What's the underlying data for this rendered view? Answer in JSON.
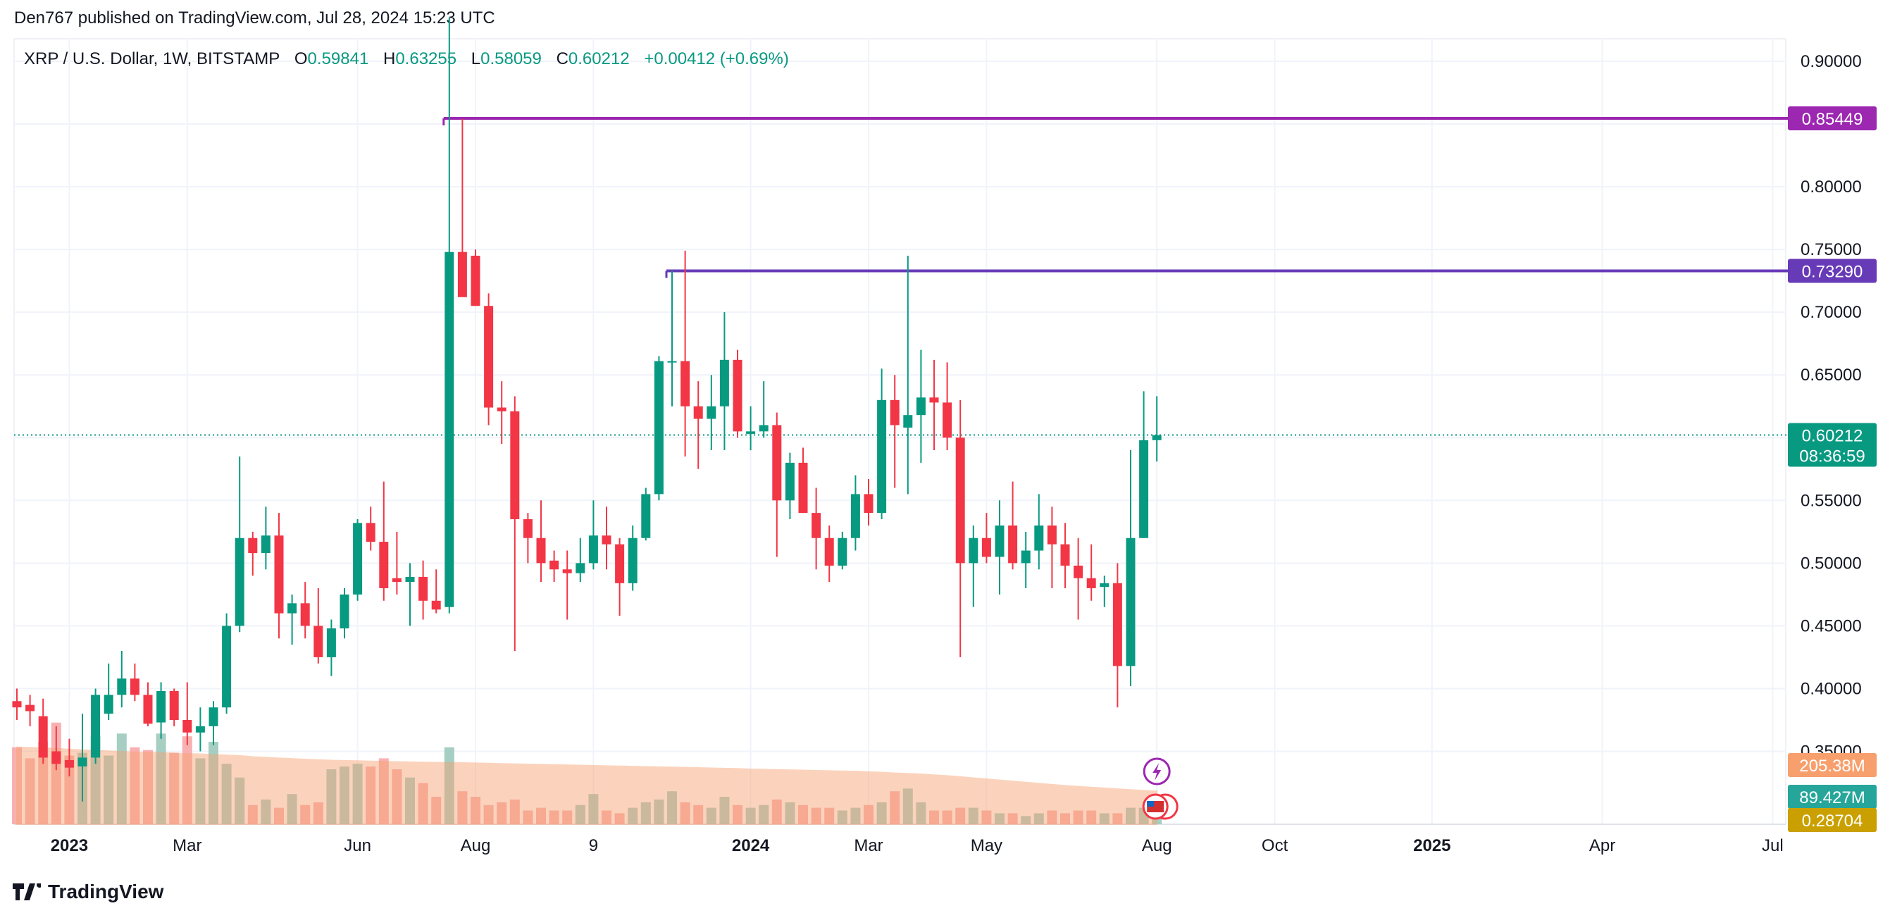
{
  "header": {
    "publisher_line": "Den767 published on TradingView.com, Jul 28, 2024 15:23 UTC"
  },
  "brand": {
    "name": "TradingView"
  },
  "legend": {
    "symbol": "XRP / U.S. Dollar, 1W, BITSTAMP",
    "open_label": "O",
    "open": "0.59841",
    "high_label": "H",
    "high": "0.63255",
    "low_label": "L",
    "low": "0.58059",
    "close_label": "C",
    "close": "0.60212",
    "change": "+0.00412 (+0.69%)"
  },
  "colors": {
    "up": "#089981",
    "down": "#f23645",
    "line_upper": "#9c27b0",
    "line_lower": "#673ab7",
    "volume_ma": "#f7a06e",
    "grid": "#f0f3fa",
    "axis_text": "#131722"
  },
  "chart_data": {
    "type": "candlestick",
    "symbol": "XRP / U.S. Dollar",
    "interval": "1W",
    "exchange": "BITSTAMP",
    "y_axis": {
      "min": 0.35,
      "max": 0.9,
      "ticks": [
        "0.90000",
        "0.85000",
        "0.80000",
        "0.75000",
        "0.70000",
        "0.65000",
        "0.60000",
        "0.55000",
        "0.50000",
        "0.45000",
        "0.40000",
        "0.35000"
      ]
    },
    "x_axis": {
      "tick_labels": [
        {
          "label": "2023",
          "bold": true,
          "index": 4
        },
        {
          "label": "Mar",
          "bold": false,
          "index": 13
        },
        {
          "label": "Jun",
          "bold": false,
          "index": 26
        },
        {
          "label": "Aug",
          "bold": false,
          "index": 35
        },
        {
          "label": "9",
          "bold": false,
          "index": 44
        },
        {
          "label": "2024",
          "bold": true,
          "index": 56
        },
        {
          "label": "Mar",
          "bold": false,
          "index": 65
        },
        {
          "label": "May",
          "bold": false,
          "index": 74
        },
        {
          "label": "Aug",
          "bold": false,
          "index": 87
        },
        {
          "label": "Oct",
          "bold": false,
          "index": 96
        },
        {
          "label": "2025",
          "bold": true,
          "index": 108
        },
        {
          "label": "Apr",
          "bold": false,
          "index": 121
        },
        {
          "label": "Jul",
          "bold": false,
          "index": 134
        }
      ],
      "total_slots": 137
    },
    "horizontal_lines": [
      {
        "value": 0.85449,
        "label": "0.85449",
        "color": "#9c27b0",
        "start_index": 33
      },
      {
        "value": 0.7329,
        "label": "0.73290",
        "color": "#673ab7",
        "start_index": 50
      }
    ],
    "last_price": {
      "value": 0.60212,
      "label": "0.60212",
      "countdown": "08:36:59"
    },
    "volume_labels": [
      {
        "label": "205.38M",
        "color": "#f7a06e"
      },
      {
        "label": "89.427M",
        "color": "#26a69a"
      },
      {
        "label": "0.28704",
        "color": "#c9a000"
      }
    ],
    "candles": [
      {
        "o": 0.39,
        "h": 0.4,
        "l": 0.375,
        "c": 0.385
      },
      {
        "o": 0.387,
        "h": 0.395,
        "l": 0.37,
        "c": 0.382
      },
      {
        "o": 0.378,
        "h": 0.392,
        "l": 0.34,
        "c": 0.345
      },
      {
        "o": 0.35,
        "h": 0.37,
        "l": 0.335,
        "c": 0.34
      },
      {
        "o": 0.343,
        "h": 0.36,
        "l": 0.33,
        "c": 0.337
      },
      {
        "o": 0.338,
        "h": 0.38,
        "l": 0.31,
        "c": 0.345
      },
      {
        "o": 0.345,
        "h": 0.4,
        "l": 0.34,
        "c": 0.395
      },
      {
        "o": 0.38,
        "h": 0.42,
        "l": 0.375,
        "c": 0.395
      },
      {
        "o": 0.395,
        "h": 0.43,
        "l": 0.385,
        "c": 0.408
      },
      {
        "o": 0.408,
        "h": 0.42,
        "l": 0.39,
        "c": 0.395
      },
      {
        "o": 0.395,
        "h": 0.405,
        "l": 0.37,
        "c": 0.372
      },
      {
        "o": 0.373,
        "h": 0.405,
        "l": 0.36,
        "c": 0.398
      },
      {
        "o": 0.398,
        "h": 0.4,
        "l": 0.37,
        "c": 0.375
      },
      {
        "o": 0.375,
        "h": 0.405,
        "l": 0.355,
        "c": 0.365
      },
      {
        "o": 0.365,
        "h": 0.385,
        "l": 0.35,
        "c": 0.37
      },
      {
        "o": 0.37,
        "h": 0.39,
        "l": 0.355,
        "c": 0.385
      },
      {
        "o": 0.385,
        "h": 0.46,
        "l": 0.38,
        "c": 0.45
      },
      {
        "o": 0.45,
        "h": 0.585,
        "l": 0.445,
        "c": 0.52
      },
      {
        "o": 0.52,
        "h": 0.525,
        "l": 0.49,
        "c": 0.508
      },
      {
        "o": 0.508,
        "h": 0.545,
        "l": 0.495,
        "c": 0.522
      },
      {
        "o": 0.522,
        "h": 0.54,
        "l": 0.44,
        "c": 0.46
      },
      {
        "o": 0.46,
        "h": 0.475,
        "l": 0.435,
        "c": 0.468
      },
      {
        "o": 0.468,
        "h": 0.485,
        "l": 0.44,
        "c": 0.45
      },
      {
        "o": 0.45,
        "h": 0.48,
        "l": 0.42,
        "c": 0.425
      },
      {
        "o": 0.425,
        "h": 0.455,
        "l": 0.41,
        "c": 0.448
      },
      {
        "o": 0.448,
        "h": 0.48,
        "l": 0.44,
        "c": 0.475
      },
      {
        "o": 0.475,
        "h": 0.535,
        "l": 0.47,
        "c": 0.532
      },
      {
        "o": 0.532,
        "h": 0.545,
        "l": 0.51,
        "c": 0.517
      },
      {
        "o": 0.517,
        "h": 0.565,
        "l": 0.47,
        "c": 0.48
      },
      {
        "o": 0.488,
        "h": 0.525,
        "l": 0.475,
        "c": 0.485
      },
      {
        "o": 0.485,
        "h": 0.5,
        "l": 0.45,
        "c": 0.489
      },
      {
        "o": 0.489,
        "h": 0.502,
        "l": 0.455,
        "c": 0.47
      },
      {
        "o": 0.47,
        "h": 0.495,
        "l": 0.46,
        "c": 0.463
      },
      {
        "o": 0.465,
        "h": 0.935,
        "l": 0.46,
        "c": 0.748
      },
      {
        "o": 0.748,
        "h": 0.854,
        "l": 0.715,
        "c": 0.712
      },
      {
        "o": 0.745,
        "h": 0.75,
        "l": 0.705,
        "c": 0.705
      },
      {
        "o": 0.705,
        "h": 0.715,
        "l": 0.61,
        "c": 0.624
      },
      {
        "o": 0.624,
        "h": 0.645,
        "l": 0.595,
        "c": 0.621
      },
      {
        "o": 0.621,
        "h": 0.633,
        "l": 0.43,
        "c": 0.535
      },
      {
        "o": 0.535,
        "h": 0.54,
        "l": 0.5,
        "c": 0.52
      },
      {
        "o": 0.52,
        "h": 0.55,
        "l": 0.485,
        "c": 0.5
      },
      {
        "o": 0.502,
        "h": 0.51,
        "l": 0.485,
        "c": 0.495
      },
      {
        "o": 0.495,
        "h": 0.51,
        "l": 0.455,
        "c": 0.492
      },
      {
        "o": 0.492,
        "h": 0.52,
        "l": 0.485,
        "c": 0.5
      },
      {
        "o": 0.5,
        "h": 0.55,
        "l": 0.495,
        "c": 0.522
      },
      {
        "o": 0.522,
        "h": 0.545,
        "l": 0.495,
        "c": 0.515
      },
      {
        "o": 0.515,
        "h": 0.52,
        "l": 0.458,
        "c": 0.484
      },
      {
        "o": 0.484,
        "h": 0.53,
        "l": 0.478,
        "c": 0.52
      },
      {
        "o": 0.52,
        "h": 0.56,
        "l": 0.518,
        "c": 0.555
      },
      {
        "o": 0.555,
        "h": 0.665,
        "l": 0.55,
        "c": 0.661
      },
      {
        "o": 0.661,
        "h": 0.733,
        "l": 0.625,
        "c": 0.661
      },
      {
        "o": 0.661,
        "h": 0.749,
        "l": 0.585,
        "c": 0.625
      },
      {
        "o": 0.625,
        "h": 0.645,
        "l": 0.575,
        "c": 0.615
      },
      {
        "o": 0.615,
        "h": 0.65,
        "l": 0.59,
        "c": 0.625
      },
      {
        "o": 0.625,
        "h": 0.7,
        "l": 0.59,
        "c": 0.662
      },
      {
        "o": 0.662,
        "h": 0.67,
        "l": 0.6,
        "c": 0.605
      },
      {
        "o": 0.603,
        "h": 0.625,
        "l": 0.59,
        "c": 0.605
      },
      {
        "o": 0.605,
        "h": 0.645,
        "l": 0.6,
        "c": 0.61
      },
      {
        "o": 0.61,
        "h": 0.62,
        "l": 0.505,
        "c": 0.55
      },
      {
        "o": 0.55,
        "h": 0.588,
        "l": 0.535,
        "c": 0.58
      },
      {
        "o": 0.58,
        "h": 0.592,
        "l": 0.54,
        "c": 0.54
      },
      {
        "o": 0.54,
        "h": 0.56,
        "l": 0.495,
        "c": 0.52
      },
      {
        "o": 0.52,
        "h": 0.53,
        "l": 0.485,
        "c": 0.498
      },
      {
        "o": 0.498,
        "h": 0.525,
        "l": 0.495,
        "c": 0.52
      },
      {
        "o": 0.52,
        "h": 0.57,
        "l": 0.51,
        "c": 0.555
      },
      {
        "o": 0.555,
        "h": 0.567,
        "l": 0.53,
        "c": 0.54
      },
      {
        "o": 0.54,
        "h": 0.655,
        "l": 0.535,
        "c": 0.63
      },
      {
        "o": 0.63,
        "h": 0.65,
        "l": 0.56,
        "c": 0.61
      },
      {
        "o": 0.608,
        "h": 0.745,
        "l": 0.555,
        "c": 0.618
      },
      {
        "o": 0.618,
        "h": 0.67,
        "l": 0.58,
        "c": 0.632
      },
      {
        "o": 0.632,
        "h": 0.662,
        "l": 0.59,
        "c": 0.628
      },
      {
        "o": 0.628,
        "h": 0.66,
        "l": 0.59,
        "c": 0.6
      },
      {
        "o": 0.6,
        "h": 0.63,
        "l": 0.425,
        "c": 0.5
      },
      {
        "o": 0.5,
        "h": 0.53,
        "l": 0.465,
        "c": 0.52
      },
      {
        "o": 0.52,
        "h": 0.54,
        "l": 0.5,
        "c": 0.505
      },
      {
        "o": 0.505,
        "h": 0.55,
        "l": 0.475,
        "c": 0.53
      },
      {
        "o": 0.53,
        "h": 0.565,
        "l": 0.495,
        "c": 0.5
      },
      {
        "o": 0.5,
        "h": 0.525,
        "l": 0.48,
        "c": 0.51
      },
      {
        "o": 0.51,
        "h": 0.555,
        "l": 0.495,
        "c": 0.53
      },
      {
        "o": 0.53,
        "h": 0.545,
        "l": 0.48,
        "c": 0.515
      },
      {
        "o": 0.515,
        "h": 0.532,
        "l": 0.48,
        "c": 0.498
      },
      {
        "o": 0.498,
        "h": 0.52,
        "l": 0.455,
        "c": 0.488
      },
      {
        "o": 0.488,
        "h": 0.515,
        "l": 0.47,
        "c": 0.48
      },
      {
        "o": 0.481,
        "h": 0.49,
        "l": 0.465,
        "c": 0.484
      },
      {
        "o": 0.484,
        "h": 0.5,
        "l": 0.385,
        "c": 0.418
      },
      {
        "o": 0.418,
        "h": 0.59,
        "l": 0.402,
        "c": 0.52
      },
      {
        "o": 0.52,
        "h": 0.637,
        "l": 0.52,
        "c": 0.598
      },
      {
        "o": 0.598,
        "h": 0.633,
        "l": 0.581,
        "c": 0.602
      }
    ],
    "volumes": [
      0.28,
      0.24,
      0.3,
      0.37,
      0.25,
      0.26,
      0.32,
      0.25,
      0.33,
      0.28,
      0.27,
      0.33,
      0.26,
      0.32,
      0.24,
      0.3,
      0.22,
      0.17,
      0.07,
      0.09,
      0.06,
      0.11,
      0.07,
      0.08,
      0.2,
      0.21,
      0.22,
      0.21,
      0.24,
      0.2,
      0.17,
      0.15,
      0.1,
      0.28,
      0.12,
      0.1,
      0.07,
      0.08,
      0.09,
      0.05,
      0.06,
      0.05,
      0.05,
      0.07,
      0.11,
      0.05,
      0.04,
      0.06,
      0.08,
      0.09,
      0.12,
      0.08,
      0.07,
      0.06,
      0.1,
      0.07,
      0.06,
      0.07,
      0.09,
      0.08,
      0.07,
      0.06,
      0.06,
      0.05,
      0.06,
      0.07,
      0.08,
      0.12,
      0.13,
      0.08,
      0.05,
      0.05,
      0.06,
      0.06,
      0.05,
      0.04,
      0.04,
      0.03,
      0.04,
      0.05,
      0.04,
      0.05,
      0.05,
      0.04,
      0.04,
      0.06,
      0.06,
      0.07
    ],
    "volume_ma": [
      0.28,
      0.279,
      0.277,
      0.275,
      0.272,
      0.27,
      0.268,
      0.266,
      0.264,
      0.262,
      0.261,
      0.26,
      0.258,
      0.256,
      0.255,
      0.253,
      0.251,
      0.249,
      0.245,
      0.243,
      0.24,
      0.238,
      0.236,
      0.234,
      0.232,
      0.231,
      0.23,
      0.229,
      0.228,
      0.227,
      0.226,
      0.225,
      0.224,
      0.224,
      0.223,
      0.222,
      0.221,
      0.22,
      0.219,
      0.218,
      0.217,
      0.216,
      0.215,
      0.214,
      0.213,
      0.212,
      0.211,
      0.21,
      0.209,
      0.208,
      0.207,
      0.206,
      0.205,
      0.204,
      0.203,
      0.202,
      0.2,
      0.199,
      0.198,
      0.197,
      0.196,
      0.195,
      0.194,
      0.193,
      0.192,
      0.19,
      0.188,
      0.186,
      0.184,
      0.182,
      0.179,
      0.176,
      0.172,
      0.168,
      0.164,
      0.16,
      0.156,
      0.152,
      0.148,
      0.144,
      0.14,
      0.137,
      0.134,
      0.131,
      0.128,
      0.125,
      0.122,
      0.12
    ]
  }
}
